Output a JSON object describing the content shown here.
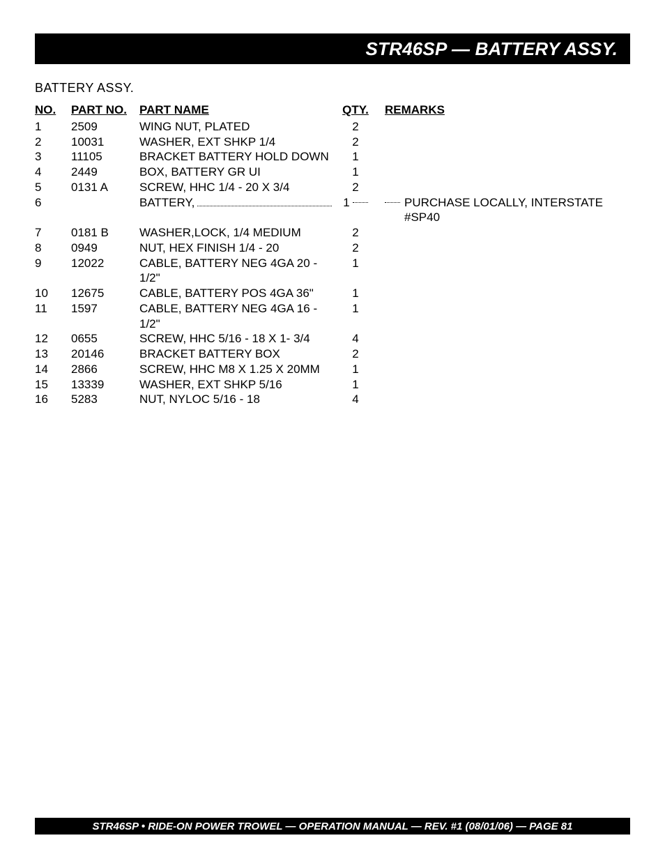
{
  "title_bar": "STR46SP — BATTERY ASSY.",
  "section_title": "BATTERY ASSY.",
  "columns": {
    "no": "NO.",
    "partno": "PART NO.",
    "name": "PART NAME",
    "qty": "QTY.",
    "remarks": "REMARKS"
  },
  "rows": [
    {
      "no": "1",
      "partno": "2509",
      "name": "WING NUT, PLATED",
      "qty": "2",
      "remarks": "",
      "dotted": false
    },
    {
      "no": "2",
      "partno": "10031",
      "name": "WASHER, EXT SHKP 1/4",
      "qty": "2",
      "remarks": "",
      "dotted": false
    },
    {
      "no": "3",
      "partno": "11105",
      "name": "BRACKET BATTERY HOLD DOWN",
      "qty": "1",
      "remarks": "",
      "dotted": false
    },
    {
      "no": "4",
      "partno": "2449",
      "name": "BOX, BATTERY GR UI",
      "qty": "1",
      "remarks": "",
      "dotted": false
    },
    {
      "no": "5",
      "partno": "0131 A",
      "name": "SCREW, HHC 1/4 - 20 X 3/4",
      "qty": "2",
      "remarks": "",
      "dotted": false
    },
    {
      "no": "6",
      "partno": "",
      "name": "BATTERY,",
      "qty": "1",
      "remarks": "PURCHASE LOCALLY,  INTERSTATE #SP40",
      "dotted": true
    },
    {
      "no": "7",
      "partno": "0181 B",
      "name": "WASHER,LOCK, 1/4 MEDIUM",
      "qty": "2",
      "remarks": "",
      "dotted": false
    },
    {
      "no": "8",
      "partno": "0949",
      "name": "NUT, HEX FINISH 1/4 - 20",
      "qty": "2",
      "remarks": "",
      "dotted": false
    },
    {
      "no": "9",
      "partno": "12022",
      "name": "CABLE, BATTERY NEG 4GA 20 - 1/2\"",
      "qty": "1",
      "remarks": "",
      "dotted": false
    },
    {
      "no": "10",
      "partno": "12675",
      "name": "CABLE, BATTERY POS 4GA 36\"",
      "qty": "1",
      "remarks": "",
      "dotted": false
    },
    {
      "no": "11",
      "partno": "1597",
      "name": "CABLE, BATTERY NEG 4GA 16 - 1/2\"",
      "qty": "1",
      "remarks": "",
      "dotted": false
    },
    {
      "no": "12",
      "partno": "0655",
      "name": "SCREW, HHC 5/16 - 18 X 1- 3/4",
      "qty": "4",
      "remarks": "",
      "dotted": false
    },
    {
      "no": "13",
      "partno": "20146",
      "name": "BRACKET BATTERY BOX",
      "qty": "2",
      "remarks": "",
      "dotted": false
    },
    {
      "no": "14",
      "partno": "2866",
      "name": "SCREW, HHC M8 X 1.25 X 20MM",
      "qty": "1",
      "remarks": "",
      "dotted": false
    },
    {
      "no": "15",
      "partno": "13339",
      "name": "WASHER, EXT SHKP 5/16",
      "qty": "1",
      "remarks": "",
      "dotted": false
    },
    {
      "no": "16",
      "partno": "5283",
      "name": "NUT, NYLOC 5/16 - 18",
      "qty": "4",
      "remarks": "",
      "dotted": false
    }
  ],
  "footer": "STR46SP  • RIDE-ON POWER TROWEL — OPERATION MANUAL — REV. #1 (08/01/06) — PAGE 81"
}
